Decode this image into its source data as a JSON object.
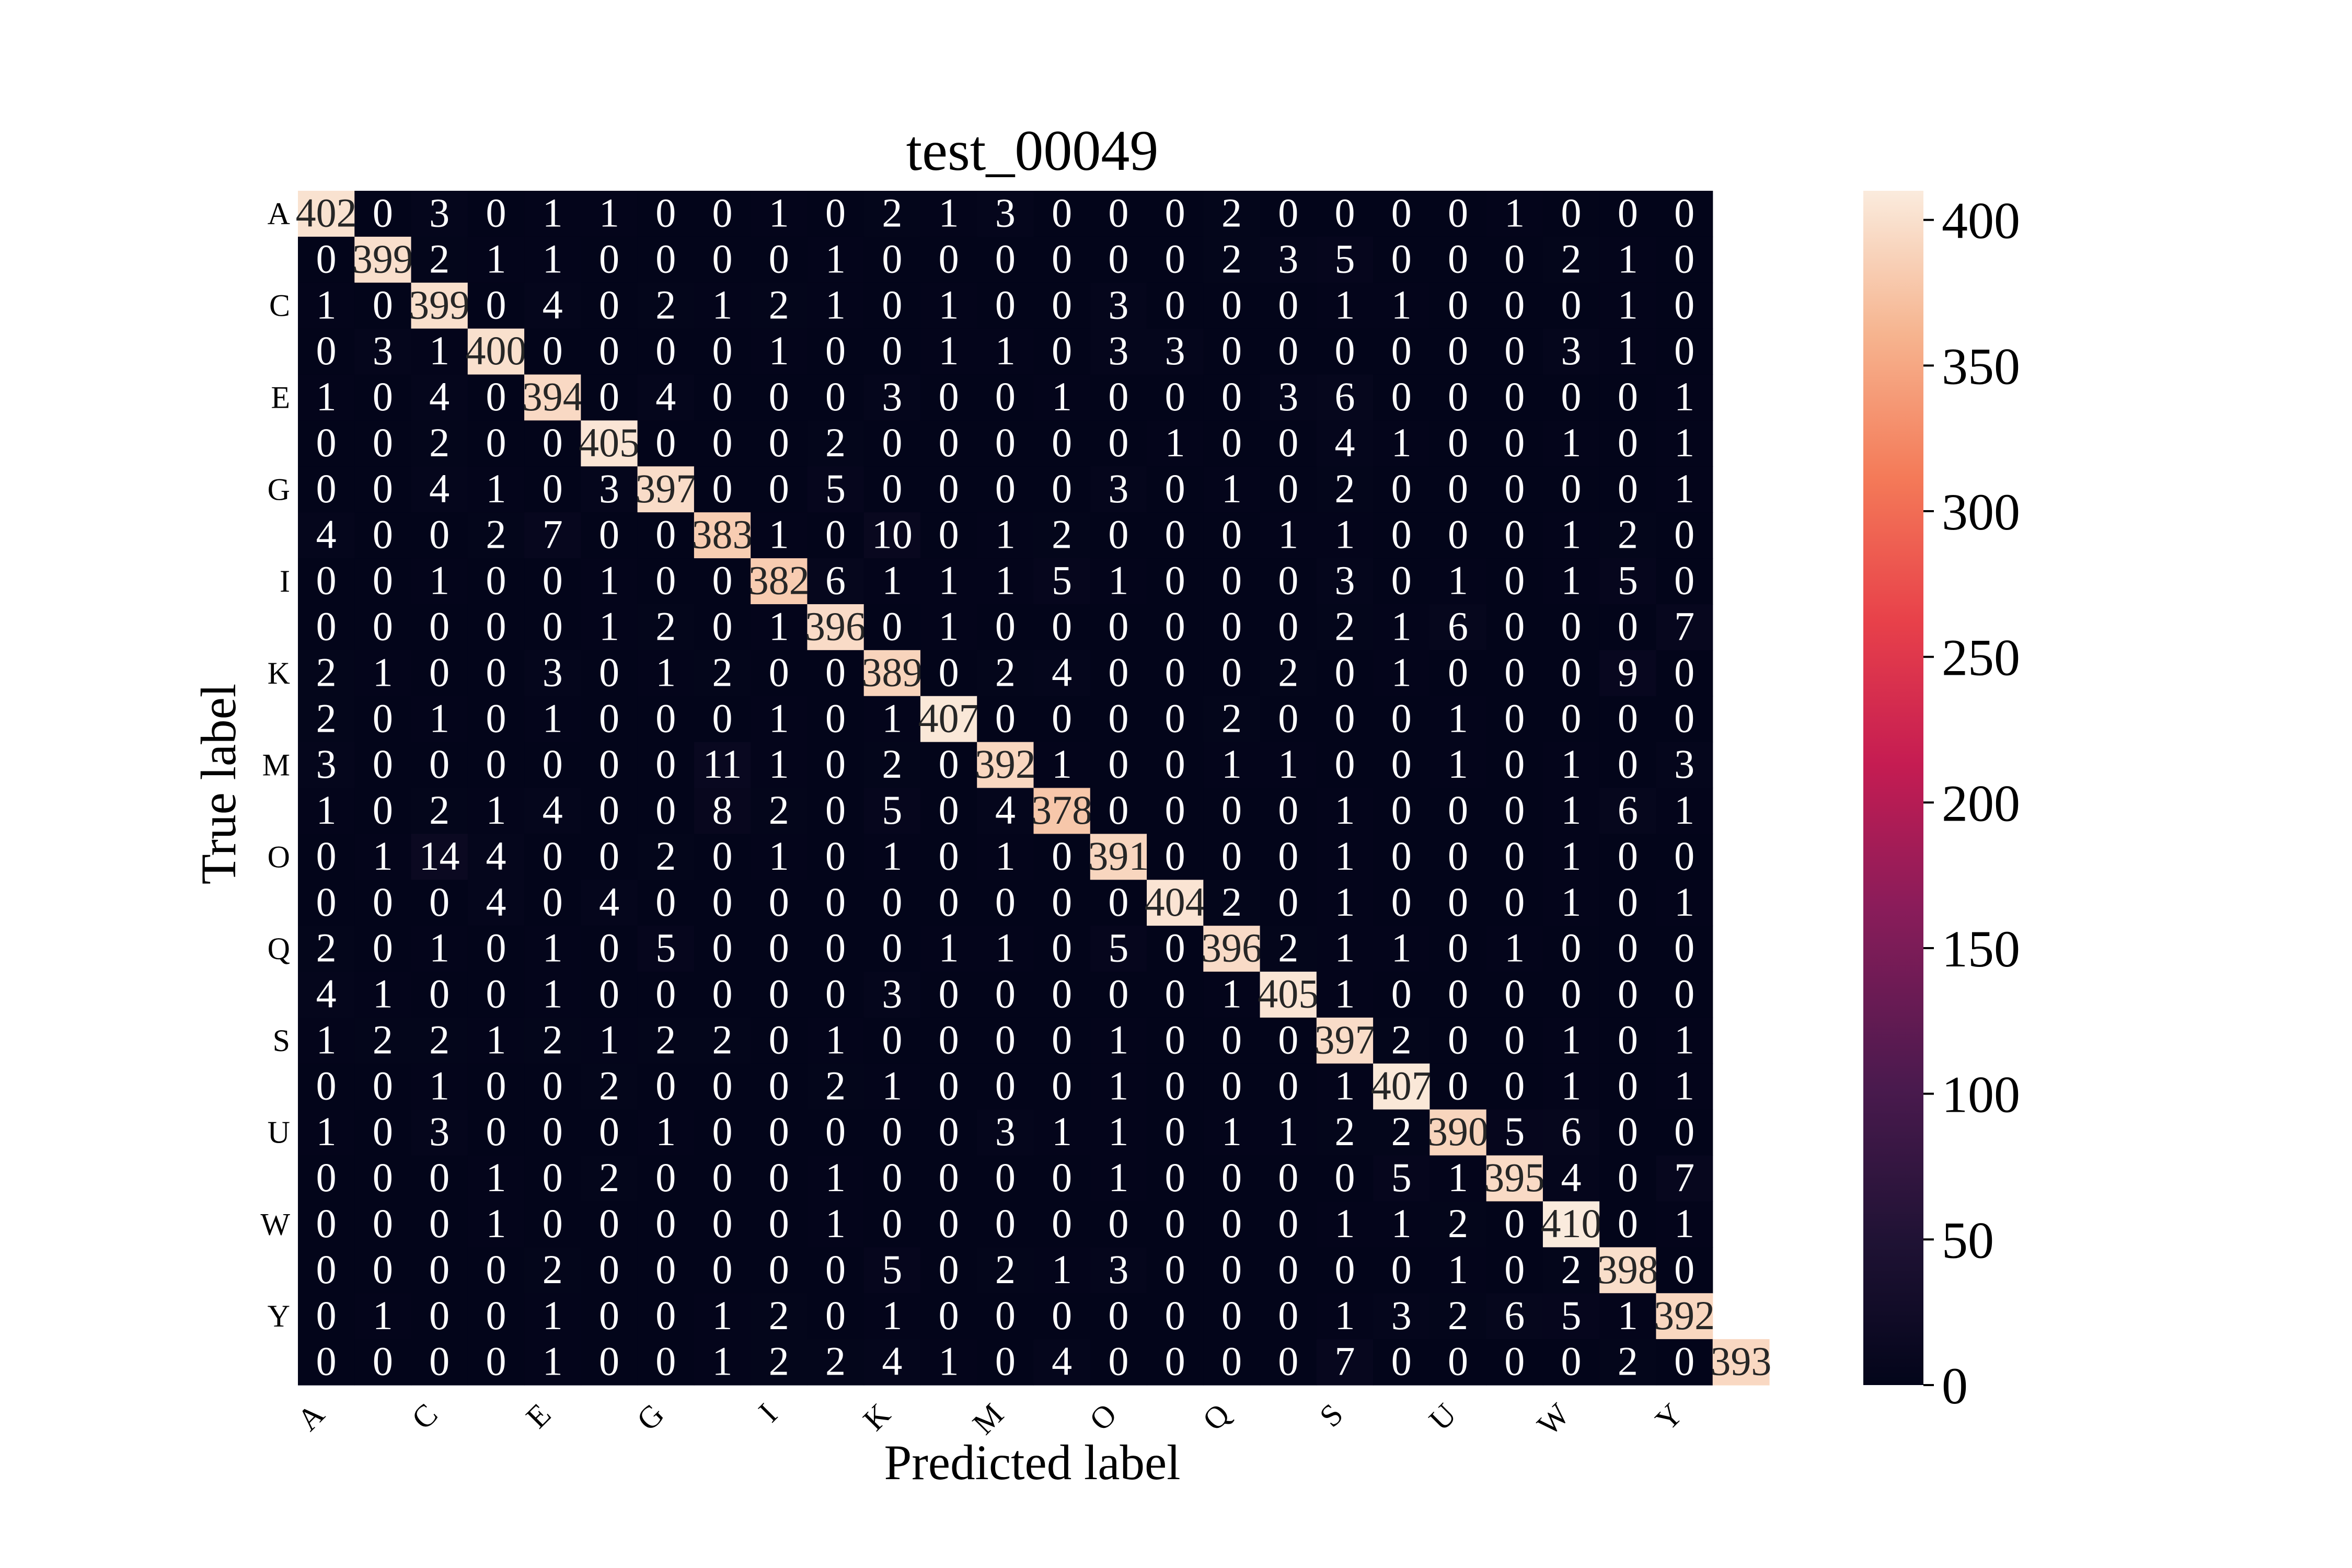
{
  "chart_data": {
    "type": "heatmap",
    "title": "test_00049",
    "xlabel": "Predicted label",
    "ylabel": "True label",
    "row_tick_labels": [
      "A",
      "C",
      "E",
      "G",
      "I",
      "K",
      "M",
      "O",
      "Q",
      "S",
      "U",
      "W",
      "Y"
    ],
    "col_tick_labels": [
      "A",
      "C",
      "E",
      "G",
      "I",
      "K",
      "M",
      "O",
      "Q",
      "S",
      "U",
      "W",
      "Y"
    ],
    "colorbar": {
      "min": 0,
      "max": 410,
      "ticks": [
        0,
        50,
        100,
        150,
        200,
        250,
        300,
        350,
        400
      ]
    },
    "matrix": [
      [
        402,
        0,
        3,
        0,
        1,
        1,
        0,
        0,
        1,
        0,
        2,
        1,
        3,
        0,
        0,
        0,
        2,
        0,
        0,
        0,
        0,
        1,
        0,
        0,
        0
      ],
      [
        0,
        399,
        2,
        1,
        1,
        0,
        0,
        0,
        0,
        1,
        0,
        0,
        0,
        0,
        0,
        0,
        2,
        3,
        5,
        0,
        0,
        0,
        2,
        1,
        0
      ],
      [
        1,
        0,
        399,
        0,
        4,
        0,
        2,
        1,
        2,
        1,
        0,
        1,
        0,
        0,
        3,
        0,
        0,
        0,
        1,
        1,
        0,
        0,
        0,
        1,
        0
      ],
      [
        0,
        3,
        1,
        400,
        0,
        0,
        0,
        0,
        1,
        0,
        0,
        1,
        1,
        0,
        3,
        3,
        0,
        0,
        0,
        0,
        0,
        0,
        3,
        1,
        0
      ],
      [
        1,
        0,
        4,
        0,
        394,
        0,
        4,
        0,
        0,
        0,
        3,
        0,
        0,
        1,
        0,
        0,
        0,
        3,
        6,
        0,
        0,
        0,
        0,
        0,
        1
      ],
      [
        0,
        0,
        2,
        0,
        0,
        405,
        0,
        0,
        0,
        2,
        0,
        0,
        0,
        0,
        0,
        1,
        0,
        0,
        4,
        1,
        0,
        0,
        1,
        0,
        1
      ],
      [
        0,
        0,
        4,
        1,
        0,
        3,
        397,
        0,
        0,
        5,
        0,
        0,
        0,
        0,
        3,
        0,
        1,
        0,
        2,
        0,
        0,
        0,
        0,
        0,
        1
      ],
      [
        4,
        0,
        0,
        2,
        7,
        0,
        0,
        383,
        1,
        0,
        10,
        0,
        1,
        2,
        0,
        0,
        0,
        1,
        1,
        0,
        0,
        0,
        1,
        2,
        0
      ],
      [
        0,
        0,
        1,
        0,
        0,
        1,
        0,
        0,
        382,
        6,
        1,
        1,
        1,
        5,
        1,
        0,
        0,
        0,
        3,
        0,
        1,
        0,
        1,
        5,
        0
      ],
      [
        0,
        0,
        0,
        0,
        0,
        1,
        2,
        0,
        1,
        396,
        0,
        1,
        0,
        0,
        0,
        0,
        0,
        0,
        2,
        1,
        6,
        0,
        0,
        0,
        7
      ],
      [
        2,
        1,
        0,
        0,
        3,
        0,
        1,
        2,
        0,
        0,
        389,
        0,
        2,
        4,
        0,
        0,
        0,
        2,
        0,
        1,
        0,
        0,
        0,
        9,
        0
      ],
      [
        2,
        0,
        1,
        0,
        1,
        0,
        0,
        0,
        1,
        0,
        1,
        407,
        0,
        0,
        0,
        0,
        2,
        0,
        0,
        0,
        1,
        0,
        0,
        0,
        0
      ],
      [
        3,
        0,
        0,
        0,
        0,
        0,
        0,
        11,
        1,
        0,
        2,
        0,
        392,
        1,
        0,
        0,
        1,
        1,
        0,
        0,
        1,
        0,
        1,
        0,
        3
      ],
      [
        1,
        0,
        2,
        1,
        4,
        0,
        0,
        8,
        2,
        0,
        5,
        0,
        4,
        378,
        0,
        0,
        0,
        0,
        1,
        0,
        0,
        0,
        1,
        6,
        1
      ],
      [
        0,
        1,
        14,
        4,
        0,
        0,
        2,
        0,
        1,
        0,
        1,
        0,
        1,
        0,
        391,
        0,
        0,
        0,
        1,
        0,
        0,
        0,
        1,
        0,
        0
      ],
      [
        0,
        0,
        0,
        4,
        0,
        4,
        0,
        0,
        0,
        0,
        0,
        0,
        0,
        0,
        0,
        404,
        2,
        0,
        1,
        0,
        0,
        0,
        1,
        0,
        1
      ],
      [
        2,
        0,
        1,
        0,
        1,
        0,
        5,
        0,
        0,
        0,
        0,
        1,
        1,
        0,
        5,
        0,
        396,
        2,
        1,
        1,
        0,
        1,
        0,
        0,
        0
      ],
      [
        4,
        1,
        0,
        0,
        1,
        0,
        0,
        0,
        0,
        0,
        3,
        0,
        0,
        0,
        0,
        0,
        1,
        405,
        1,
        0,
        0,
        0,
        0,
        0,
        0
      ],
      [
        1,
        2,
        2,
        1,
        2,
        1,
        2,
        2,
        0,
        1,
        0,
        0,
        0,
        0,
        1,
        0,
        0,
        0,
        397,
        2,
        0,
        0,
        1,
        0,
        1
      ],
      [
        0,
        0,
        1,
        0,
        0,
        2,
        0,
        0,
        0,
        2,
        1,
        0,
        0,
        0,
        1,
        0,
        0,
        0,
        1,
        407,
        0,
        0,
        1,
        0,
        1
      ],
      [
        1,
        0,
        3,
        0,
        0,
        0,
        1,
        0,
        0,
        0,
        0,
        0,
        3,
        1,
        1,
        0,
        1,
        1,
        2,
        2,
        390,
        5,
        6,
        0,
        0
      ],
      [
        0,
        0,
        0,
        1,
        0,
        2,
        0,
        0,
        0,
        1,
        0,
        0,
        0,
        0,
        1,
        0,
        0,
        0,
        0,
        5,
        1,
        395,
        4,
        0,
        7
      ],
      [
        0,
        0,
        0,
        1,
        0,
        0,
        0,
        0,
        0,
        1,
        0,
        0,
        0,
        0,
        0,
        0,
        0,
        0,
        1,
        1,
        2,
        0,
        410,
        0,
        1
      ],
      [
        0,
        0,
        0,
        0,
        2,
        0,
        0,
        0,
        0,
        0,
        5,
        0,
        2,
        1,
        3,
        0,
        0,
        0,
        0,
        0,
        1,
        0,
        2,
        398,
        0
      ],
      [
        0,
        1,
        0,
        0,
        1,
        0,
        0,
        1,
        2,
        0,
        1,
        0,
        0,
        0,
        0,
        0,
        0,
        0,
        1,
        3,
        2,
        6,
        5,
        1,
        392
      ]
    ],
    "last_row": [
      0,
      0,
      0,
      0,
      1,
      0,
      0,
      1,
      2,
      2,
      4,
      1,
      0,
      4,
      0,
      0,
      0,
      0,
      7,
      0,
      0,
      0,
      0,
      2,
      0,
      393
    ]
  }
}
